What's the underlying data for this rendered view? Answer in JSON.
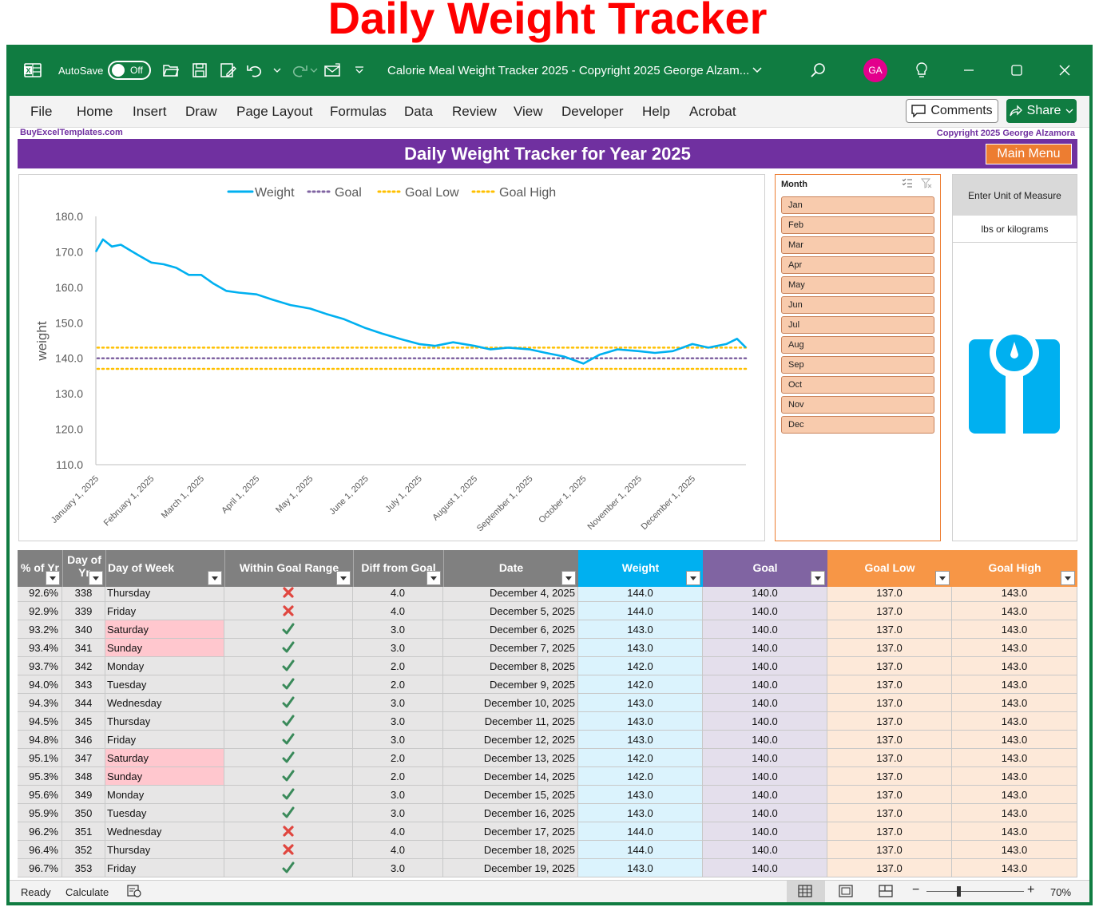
{
  "banner": "Daily Weight Tracker",
  "window": {
    "autosave_label": "AutoSave",
    "autosave_state": "Off",
    "title": "Calorie Meal Weight Tracker 2025 - Copyright 2025 George Alzam...",
    "avatar_initials": "GA"
  },
  "ribbon": {
    "tabs": [
      "File",
      "Home",
      "Insert",
      "Draw",
      "Page Layout",
      "Formulas",
      "Data",
      "Review",
      "View",
      "Developer",
      "Help",
      "Acrobat"
    ],
    "comments_label": "Comments",
    "share_label": "Share"
  },
  "sheet": {
    "site": "BuyExcelTemplates.com",
    "copyright": "Copyright 2025  George Alzamora",
    "heading": "Daily Weight Tracker for Year 2025",
    "main_menu": "Main Menu"
  },
  "chart_data": {
    "type": "line",
    "xlabel": "",
    "ylabel": "weight",
    "ylim": [
      110,
      180
    ],
    "y_ticks": [
      "180.0",
      "170.0",
      "160.0",
      "150.0",
      "140.0",
      "130.0",
      "120.0",
      "110.0"
    ],
    "x_ticks": [
      "January 1, 2025",
      "February 1, 2025",
      "March 1, 2025",
      "April 1, 2025",
      "May 1, 2025",
      "June 1, 2025",
      "July 1, 2025",
      "August 1, 2025",
      "September 1, 2025",
      "October 1, 2025",
      "November 1, 2025",
      "December 1, 2025"
    ],
    "legend_position": "top",
    "legend": [
      "Weight",
      "Goal",
      "Goal Low",
      "Goal High"
    ],
    "colors": {
      "weight": "#00b0f0",
      "goal": "#8064a2",
      "goal_low": "#ffc000",
      "goal_high": "#ffc000"
    },
    "series": [
      {
        "name": "Weight",
        "x": [
          "2025-01-01",
          "2025-01-05",
          "2025-01-10",
          "2025-01-15",
          "2025-01-20",
          "2025-01-25",
          "2025-02-01",
          "2025-02-08",
          "2025-02-15",
          "2025-02-22",
          "2025-03-01",
          "2025-03-08",
          "2025-03-15",
          "2025-03-22",
          "2025-04-01",
          "2025-04-10",
          "2025-04-20",
          "2025-05-01",
          "2025-05-10",
          "2025-05-20",
          "2025-06-01",
          "2025-06-10",
          "2025-06-20",
          "2025-07-01",
          "2025-07-10",
          "2025-07-20",
          "2025-08-01",
          "2025-08-10",
          "2025-08-20",
          "2025-09-01",
          "2025-09-10",
          "2025-09-20",
          "2025-10-01",
          "2025-10-10",
          "2025-10-20",
          "2025-11-01",
          "2025-11-10",
          "2025-11-20",
          "2025-12-01",
          "2025-12-10",
          "2025-12-20",
          "2025-12-26",
          "2025-12-31"
        ],
        "values": [
          170.0,
          173.5,
          171.5,
          172.0,
          170.5,
          169.0,
          167.0,
          166.5,
          165.5,
          163.5,
          163.5,
          161.0,
          159.0,
          158.5,
          158.0,
          156.5,
          155.0,
          154.0,
          152.5,
          151.0,
          148.5,
          147.0,
          145.5,
          144.0,
          143.5,
          144.5,
          143.5,
          142.5,
          143.0,
          142.5,
          141.5,
          140.5,
          138.5,
          141.0,
          142.5,
          142.0,
          141.5,
          142.0,
          144.0,
          143.0,
          144.0,
          145.5,
          143.0
        ]
      },
      {
        "name": "Goal",
        "constant": 140.0
      },
      {
        "name": "Goal Low",
        "constant": 137.0
      },
      {
        "name": "Goal High",
        "constant": 143.0
      }
    ]
  },
  "slicer": {
    "title": "Month",
    "items": [
      "Jan",
      "Feb",
      "Mar",
      "Apr",
      "May",
      "Jun",
      "Jul",
      "Aug",
      "Sep",
      "Oct",
      "Nov",
      "Dec"
    ]
  },
  "uom": {
    "heading": "Enter Unit of Measure",
    "hint": "lbs or kilograms"
  },
  "table": {
    "headers": {
      "pct": "% of Yr",
      "day": "Day of Yr",
      "dow": "Day of Week",
      "goal_range": "Within Goal Range",
      "diff": "Diff from Goal",
      "date": "Date",
      "weight": "Weight",
      "goal": "Goal",
      "goal_low": "Goal Low",
      "goal_high": "Goal High"
    },
    "header_colors": {
      "gray": "#808080",
      "weight": "#00b0f0",
      "goal": "#8064a2",
      "goal_range": "#f79646"
    },
    "rows": [
      {
        "pct": "92.6%",
        "day": "338",
        "dow": "Thursday",
        "ok": false,
        "diff": "4.0",
        "date": "December 4, 2025",
        "weight": "144.0",
        "goal": "140.0",
        "low": "137.0",
        "high": "143.0"
      },
      {
        "pct": "92.9%",
        "day": "339",
        "dow": "Friday",
        "ok": false,
        "diff": "4.0",
        "date": "December 5, 2025",
        "weight": "144.0",
        "goal": "140.0",
        "low": "137.0",
        "high": "143.0"
      },
      {
        "pct": "93.2%",
        "day": "340",
        "dow": "Saturday",
        "ok": true,
        "diff": "3.0",
        "date": "December 6, 2025",
        "weight": "143.0",
        "goal": "140.0",
        "low": "137.0",
        "high": "143.0"
      },
      {
        "pct": "93.4%",
        "day": "341",
        "dow": "Sunday",
        "ok": true,
        "diff": "3.0",
        "date": "December 7, 2025",
        "weight": "143.0",
        "goal": "140.0",
        "low": "137.0",
        "high": "143.0"
      },
      {
        "pct": "93.7%",
        "day": "342",
        "dow": "Monday",
        "ok": true,
        "diff": "2.0",
        "date": "December 8, 2025",
        "weight": "142.0",
        "goal": "140.0",
        "low": "137.0",
        "high": "143.0"
      },
      {
        "pct": "94.0%",
        "day": "343",
        "dow": "Tuesday",
        "ok": true,
        "diff": "2.0",
        "date": "December 9, 2025",
        "weight": "142.0",
        "goal": "140.0",
        "low": "137.0",
        "high": "143.0"
      },
      {
        "pct": "94.3%",
        "day": "344",
        "dow": "Wednesday",
        "ok": true,
        "diff": "3.0",
        "date": "December 10, 2025",
        "weight": "143.0",
        "goal": "140.0",
        "low": "137.0",
        "high": "143.0"
      },
      {
        "pct": "94.5%",
        "day": "345",
        "dow": "Thursday",
        "ok": true,
        "diff": "3.0",
        "date": "December 11, 2025",
        "weight": "143.0",
        "goal": "140.0",
        "low": "137.0",
        "high": "143.0"
      },
      {
        "pct": "94.8%",
        "day": "346",
        "dow": "Friday",
        "ok": true,
        "diff": "3.0",
        "date": "December 12, 2025",
        "weight": "143.0",
        "goal": "140.0",
        "low": "137.0",
        "high": "143.0"
      },
      {
        "pct": "95.1%",
        "day": "347",
        "dow": "Saturday",
        "ok": true,
        "diff": "2.0",
        "date": "December 13, 2025",
        "weight": "142.0",
        "goal": "140.0",
        "low": "137.0",
        "high": "143.0"
      },
      {
        "pct": "95.3%",
        "day": "348",
        "dow": "Sunday",
        "ok": true,
        "diff": "2.0",
        "date": "December 14, 2025",
        "weight": "142.0",
        "goal": "140.0",
        "low": "137.0",
        "high": "143.0"
      },
      {
        "pct": "95.6%",
        "day": "349",
        "dow": "Monday",
        "ok": true,
        "diff": "3.0",
        "date": "December 15, 2025",
        "weight": "143.0",
        "goal": "140.0",
        "low": "137.0",
        "high": "143.0"
      },
      {
        "pct": "95.9%",
        "day": "350",
        "dow": "Tuesday",
        "ok": true,
        "diff": "3.0",
        "date": "December 16, 2025",
        "weight": "143.0",
        "goal": "140.0",
        "low": "137.0",
        "high": "143.0"
      },
      {
        "pct": "96.2%",
        "day": "351",
        "dow": "Wednesday",
        "ok": false,
        "diff": "4.0",
        "date": "December 17, 2025",
        "weight": "144.0",
        "goal": "140.0",
        "low": "137.0",
        "high": "143.0"
      },
      {
        "pct": "96.4%",
        "day": "352",
        "dow": "Thursday",
        "ok": false,
        "diff": "4.0",
        "date": "December 18, 2025",
        "weight": "144.0",
        "goal": "140.0",
        "low": "137.0",
        "high": "143.0"
      },
      {
        "pct": "96.7%",
        "day": "353",
        "dow": "Friday",
        "ok": true,
        "diff": "3.0",
        "date": "December 19, 2025",
        "weight": "143.0",
        "goal": "140.0",
        "low": "137.0",
        "high": "143.0"
      }
    ]
  },
  "status": {
    "ready": "Ready",
    "calculate": "Calculate",
    "zoom": "70%"
  }
}
